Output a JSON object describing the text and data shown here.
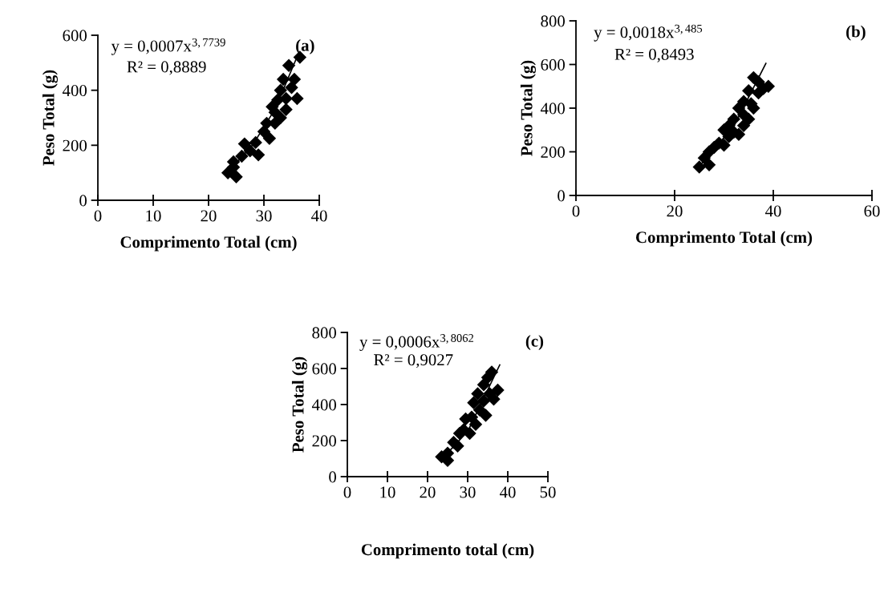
{
  "chart_data": [
    {
      "type": "scatter",
      "xlabel": "Comprimento Total (cm)",
      "ylabel": "Peso Total (g)",
      "annotations": [
        "y = 0,0007x$^{3,7739}$",
        "R² = 0,8889",
        "(a)"
      ],
      "xlim": [
        0,
        40
      ],
      "xticks": [
        0,
        10,
        20,
        30,
        40
      ],
      "ylim": [
        0,
        600
      ],
      "yticks": [
        0,
        200,
        400,
        600
      ],
      "grid": false,
      "legend": false,
      "series": [
        {
          "color": "#000000",
          "marker": "diamond",
          "x": [
            23.5,
            24.5,
            25,
            24.5,
            26,
            26.5,
            27.5,
            28.5,
            29,
            30,
            30.5,
            31,
            31.5,
            32,
            32,
            33,
            33,
            33.5,
            34,
            34,
            34.5,
            35,
            35.5,
            36,
            36.5,
            32.5
          ],
          "values": [
            100,
            120,
            85,
            140,
            160,
            205,
            180,
            210,
            165,
            250,
            280,
            225,
            340,
            280,
            320,
            300,
            400,
            440,
            370,
            330,
            490,
            410,
            440,
            370,
            520,
            365
          ]
        },
        {
          "type": "line",
          "color": "#000000",
          "marker": "none",
          "x": [
            24,
            28,
            32,
            36
          ],
          "values": [
            113,
            202,
            331,
            522
          ]
        }
      ]
    },
    {
      "type": "scatter",
      "xlabel": "Comprimento Total (cm)",
      "ylabel": "Peso Total (g)",
      "annotations": [
        "y = 0,0018x$^{3,485}$",
        "R² = 0,8493",
        "(b)"
      ],
      "xlim": [
        0,
        60
      ],
      "xticks": [
        0,
        20,
        40,
        60
      ],
      "ylim": [
        0,
        800
      ],
      "yticks": [
        0,
        200,
        400,
        600,
        800
      ],
      "grid": false,
      "legend": false,
      "series": [
        {
          "color": "#000000",
          "marker": "diamond",
          "x": [
            25,
            26,
            27,
            27,
            28,
            29,
            30,
            30,
            31,
            31,
            32,
            32,
            33,
            33,
            34,
            34,
            35,
            35,
            35.5,
            36,
            36,
            37,
            37,
            38,
            39,
            34
          ],
          "values": [
            130,
            172,
            140,
            200,
            220,
            240,
            230,
            300,
            270,
            320,
            290,
            350,
            280,
            400,
            430,
            370,
            480,
            350,
            420,
            540,
            400,
            520,
            470,
            490,
            500,
            320
          ]
        },
        {
          "type": "line",
          "color": "#000000",
          "marker": "none",
          "x": [
            25,
            32,
            38.5
          ],
          "values": [
            134,
            317,
            605
          ]
        }
      ]
    },
    {
      "type": "scatter",
      "xlabel": "Comprimento total (cm)",
      "ylabel": "Peso Total (g)",
      "annotations": [
        "y = 0,0006x$^{3,8062}$",
        "R² = 0,9027",
        "(c)"
      ],
      "xlim": [
        0,
        50
      ],
      "xticks": [
        0,
        10,
        20,
        30,
        40,
        50
      ],
      "ylim": [
        0,
        800
      ],
      "yticks": [
        0,
        200,
        400,
        600,
        800
      ],
      "grid": false,
      "legend": false,
      "series": [
        {
          "color": "#000000",
          "marker": "diamond",
          "x": [
            23.5,
            25,
            25,
            26.5,
            27.5,
            28,
            29,
            29.5,
            30.5,
            31,
            31.5,
            32,
            32.5,
            33,
            34,
            34,
            34.5,
            35,
            35.5,
            36,
            36.5,
            37.5
          ],
          "values": [
            110,
            90,
            130,
            190,
            170,
            240,
            260,
            320,
            240,
            330,
            410,
            290,
            460,
            370,
            510,
            420,
            340,
            550,
            460,
            580,
            430,
            480
          ]
        },
        {
          "type": "line",
          "color": "#000000",
          "marker": "none",
          "x": [
            24,
            30,
            38
          ],
          "values": [
            108,
            251,
            620
          ]
        }
      ]
    }
  ]
}
